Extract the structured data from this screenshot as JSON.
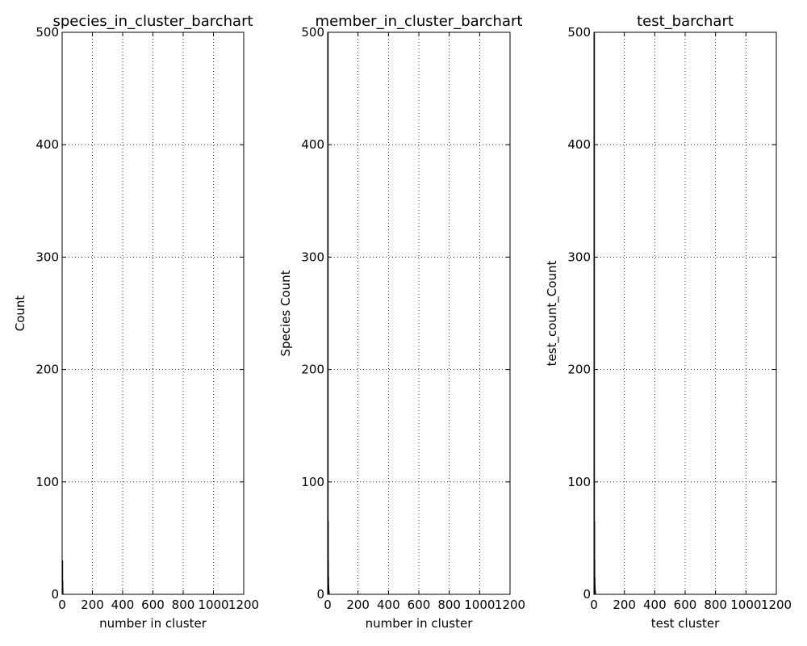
{
  "chart_data": [
    {
      "type": "bar",
      "title": "species_in_cluster_barchart",
      "xlabel": "number in cluster",
      "ylabel": "Count",
      "xlim": [
        0,
        1200
      ],
      "ylim": [
        0,
        500
      ],
      "xticks": [
        0,
        200,
        400,
        600,
        800,
        1000,
        1200
      ],
      "yticks": [
        0,
        100,
        200,
        300,
        400,
        500
      ],
      "grid": true,
      "x": [
        1,
        2,
        3
      ],
      "values": [
        30,
        12,
        5
      ]
    },
    {
      "type": "bar",
      "title": "member_in_cluster_barchart",
      "xlabel": "number in cluster",
      "ylabel": "Species Count",
      "xlim": [
        0,
        1200
      ],
      "ylim": [
        0,
        500
      ],
      "xticks": [
        0,
        200,
        400,
        600,
        800,
        1000,
        1200
      ],
      "yticks": [
        0,
        100,
        200,
        300,
        400,
        500
      ],
      "grid": true,
      "x": [
        1,
        2,
        3,
        4,
        5,
        6,
        7,
        8
      ],
      "values": [
        500,
        65,
        30,
        15,
        8,
        5,
        3,
        2
      ]
    },
    {
      "type": "bar",
      "title": "test_barchart",
      "xlabel": "test cluster",
      "ylabel": "test_count_Count",
      "xlim": [
        0,
        1200
      ],
      "ylim": [
        0,
        500
      ],
      "xticks": [
        0,
        200,
        400,
        600,
        800,
        1000,
        1200
      ],
      "yticks": [
        0,
        100,
        200,
        300,
        400,
        500
      ],
      "grid": true,
      "x": [
        1,
        2,
        3,
        4,
        5,
        6,
        7,
        8
      ],
      "values": [
        500,
        65,
        30,
        15,
        8,
        5,
        3,
        2
      ]
    }
  ]
}
